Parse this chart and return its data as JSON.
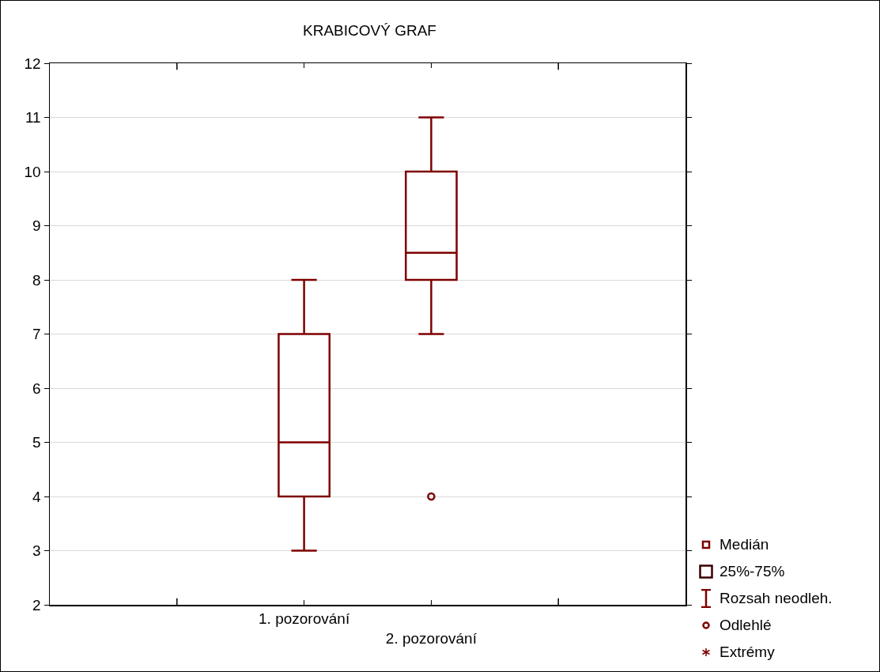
{
  "chart_data": {
    "type": "box",
    "title": "KRABICOVÝ GRAF",
    "categories": [
      "1. pozorování",
      "2. pozorování"
    ],
    "boxes": [
      {
        "low": 3,
        "q1": 4,
        "median": 5,
        "q3": 7,
        "high": 8
      },
      {
        "low": 7,
        "q1": 8,
        "median": 8.5,
        "q3": 10,
        "high": 11,
        "outliers": [
          4
        ]
      }
    ],
    "color": "#7f0000",
    "ylim": [
      2,
      12
    ],
    "yticks": [
      2,
      3,
      4,
      5,
      6,
      7,
      8,
      9,
      10,
      11,
      12
    ],
    "grid": "y",
    "annotations": [
      "Medián",
      "25%-75%",
      "Rozsah neodleh.",
      "Odlehlé",
      "Extrémy"
    ]
  }
}
